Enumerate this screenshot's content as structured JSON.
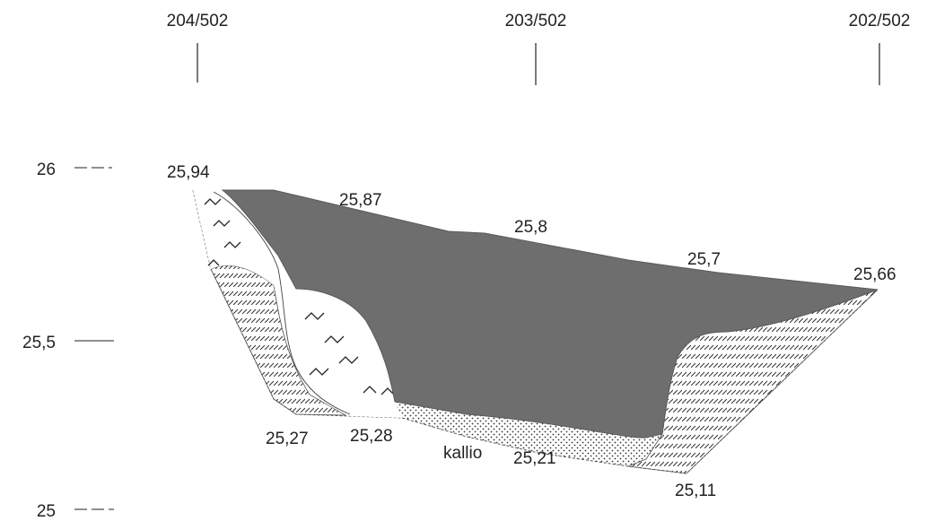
{
  "stations": [
    "204/502",
    "203/502",
    "202/502"
  ],
  "axis_labels": [
    "26",
    "25,5",
    "25"
  ],
  "elevations": {
    "left_top": "25,94",
    "top_1": "25,87",
    "top_2": "25,8",
    "top_3": "25,7",
    "right_top": "25,66",
    "bottom_1": "25,27",
    "bottom_2": "25,28",
    "bottom_3": "25,21",
    "bottom_4": "25,11"
  },
  "rock_label": "kallio",
  "colors": {
    "water": "#6e6e6e",
    "lines": "#222222",
    "hatch": "#333333"
  }
}
